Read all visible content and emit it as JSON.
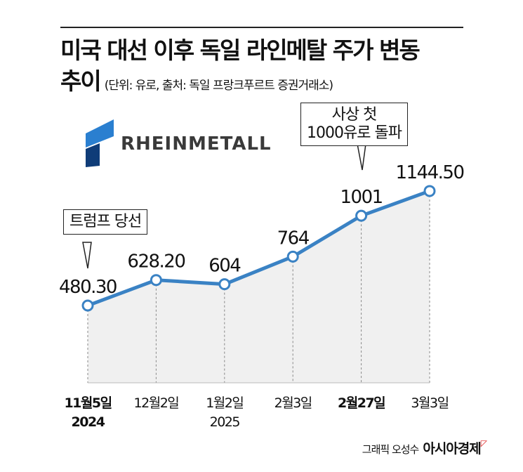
{
  "title": "미국 대선 이후 독일 라인메탈 주가 변동",
  "title_line2": "추이",
  "subtitle": "(단위: 유로, 출처: 독일 프랑크푸르트 증권거래소)",
  "logo_text": "RHEINMETALL",
  "credit": "그래픽 오성수",
  "publisher": "아시아경제",
  "annotations": [
    {
      "text": "트럼프 당선",
      "point": 0
    },
    {
      "text_line1": "사상 첫",
      "text_line2": "1000유로 돌파",
      "point": 4
    }
  ],
  "colors": {
    "line": "#3a82c4",
    "area": "#f0f0f0",
    "logo_light": "#2a7fd0",
    "logo_dark": "#0f3c78"
  },
  "chart_data": {
    "type": "line",
    "title": "미국 대선 이후 독일 라인메탈 주가 변동 추이",
    "categories": [
      {
        "date": "11월5일",
        "year": "2024",
        "bold": true
      },
      {
        "date": "12월2일",
        "year": ""
      },
      {
        "date": "1월2일",
        "year": "2025"
      },
      {
        "date": "2월3일",
        "year": ""
      },
      {
        "date": "2월27일",
        "year": "",
        "bold": true
      },
      {
        "date": "3월3일",
        "year": ""
      }
    ],
    "values": [
      480.3,
      628.2,
      604,
      764,
      1001,
      1144.5
    ],
    "labels": [
      "480.30",
      "628.20",
      "604",
      "764",
      "1001",
      "1144.50"
    ],
    "unit": "유로",
    "grid": false
  }
}
